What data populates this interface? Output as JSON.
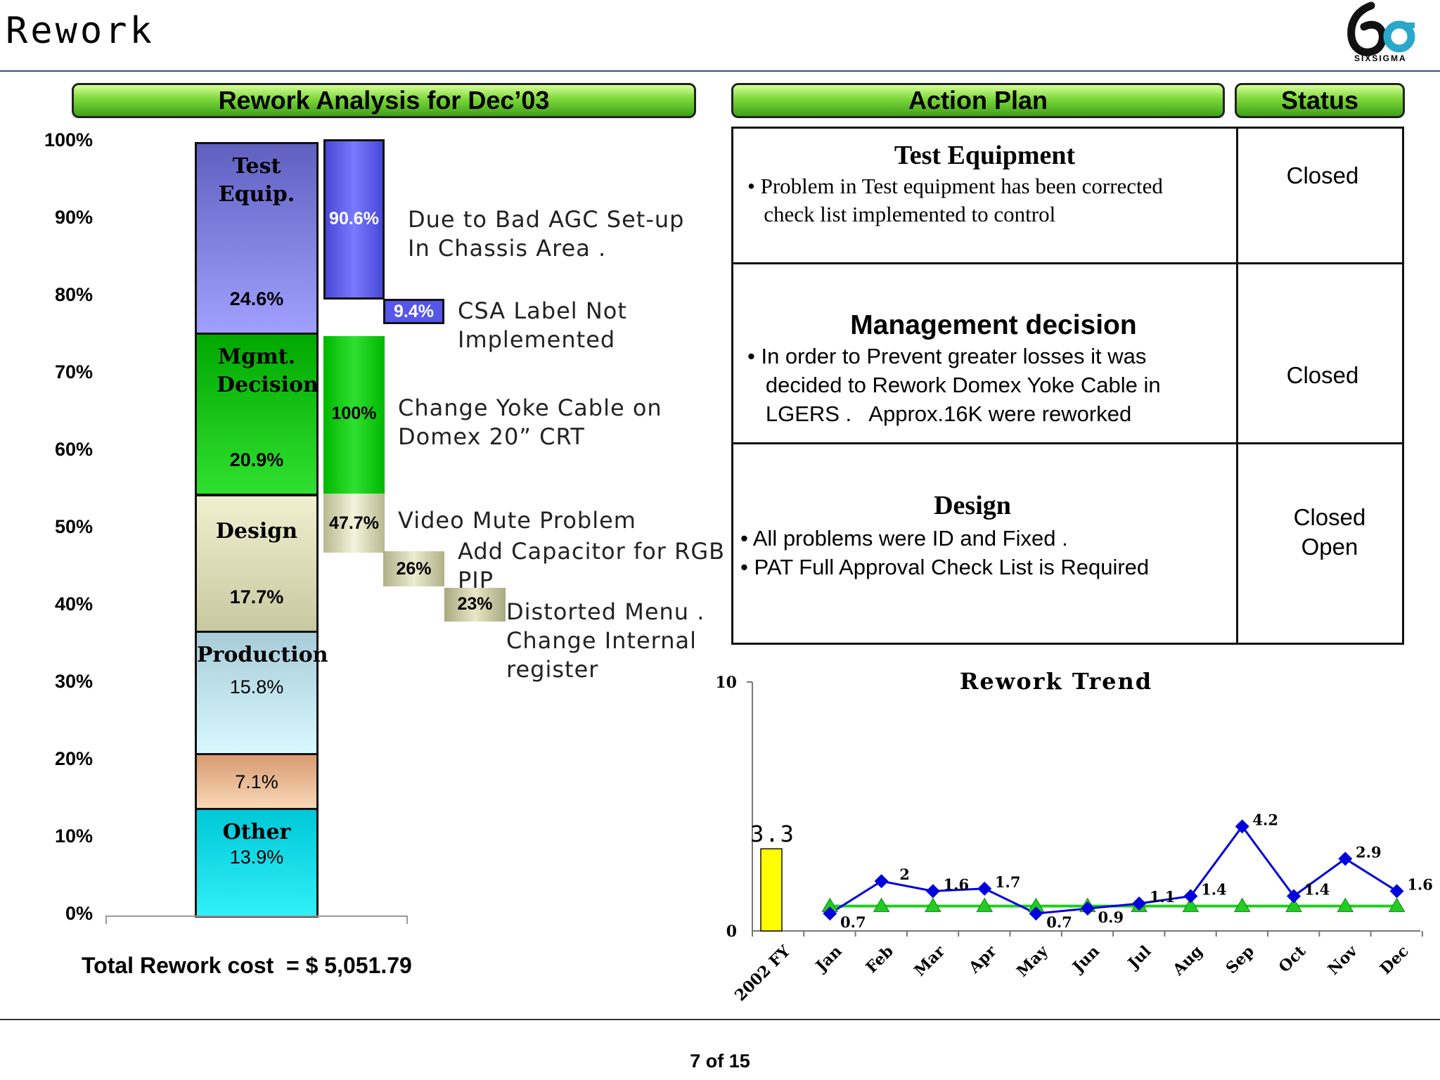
{
  "page": {
    "title": "Rework",
    "page_number": "7 of 15"
  },
  "logo": {
    "text": "SIXSIGMA"
  },
  "analysis": {
    "header": "Rework Analysis for Dec’03",
    "axis_ticks": [
      "0%",
      "10%",
      "20%",
      "30%",
      "40%",
      "50%",
      "60%",
      "70%",
      "80%",
      "90%",
      "100%"
    ],
    "segments": [
      {
        "name": "Other",
        "pct": "13.9%",
        "value": 13.9,
        "color_top": "#00c8d8",
        "color_bottom": "#30f0f8"
      },
      {
        "name": "",
        "pct": "7.1%",
        "value": 7.1,
        "color_top": "#d89a70",
        "color_bottom": "#f8d8b8"
      },
      {
        "name": "Production",
        "pct": "15.8%",
        "value": 15.8,
        "color_top": "#a8ccd8",
        "color_bottom": "#d8f8ff"
      },
      {
        "name": "Design",
        "pct": "17.7%",
        "value": 17.7,
        "color_top": "#f0f0d0",
        "color_bottom": "#c8c8a0"
      },
      {
        "name": "Mgmt. Decision",
        "pct": "20.9%",
        "value": 20.9,
        "color_top": "#00a800",
        "color_bottom": "#30e030"
      },
      {
        "name": "Test Equip.",
        "pct": "24.6%",
        "value": 24.6,
        "color_top": "#6060c0",
        "color_bottom": "#a0a0ff"
      }
    ],
    "breakdown": {
      "test_equip_1": "90.6%",
      "test_equip_2": "9.4%",
      "mgmt": "100%",
      "design_1": "47.7%",
      "design_2": "26%",
      "design_3": "23%"
    },
    "notes": {
      "agc": "Due to Bad AGC Set-up\nIn Chassis Area .",
      "csa": "CSA Label Not\nImplemented",
      "yoke": "Change Yoke Cable on\nDomex 20” CRT",
      "video": "Video Mute Problem",
      "cap": "Add Capacitor for RGB\nPIP",
      "menu": "Distorted Menu .\nChange Internal\nregister"
    },
    "total_cost": "Total Rework cost  = $ 5,051.79"
  },
  "action_plan": {
    "header": "Action Plan",
    "status_header": "Status",
    "rows": [
      {
        "title": "Test Equipment",
        "body": "• Problem in Test equipment has been corrected\n   check list implemented to control",
        "status": "Closed"
      },
      {
        "title": "Management decision",
        "body": "• In order to Prevent greater losses it was\n   decided to Rework Domex Yoke Cable in\n   LGERS .   Approx.16K were reworked",
        "status": "Closed"
      },
      {
        "title": "Design",
        "body": "• All problems were ID and Fixed .\n• PAT Full Approval Check List is Required",
        "status": "Closed\nOpen"
      }
    ]
  },
  "chart_data": [
    {
      "type": "bar",
      "title": "Rework Analysis for Dec’03",
      "stacked": true,
      "categories": [
        ""
      ],
      "series": [
        {
          "name": "Other",
          "values": [
            13.9
          ]
        },
        {
          "name": "",
          "values": [
            7.1
          ]
        },
        {
          "name": "Production",
          "values": [
            15.8
          ]
        },
        {
          "name": "Design",
          "values": [
            17.7
          ]
        },
        {
          "name": "Mgmt. Decision",
          "values": [
            20.9
          ]
        },
        {
          "name": "Test Equip.",
          "values": [
            24.6
          ]
        }
      ],
      "ylim": [
        0,
        100
      ],
      "yticks": [
        "0%",
        "10%",
        "20%",
        "30%",
        "40%",
        "50%",
        "60%",
        "70%",
        "80%",
        "90%",
        "100%"
      ]
    },
    {
      "type": "line",
      "title": "Rework Trend",
      "categories": [
        "2002 FY",
        "Jan",
        "Feb",
        "Mar",
        "Apr",
        "May",
        "Jun",
        "Jul",
        "Aug",
        "Sep",
        "Oct",
        "Nov",
        "Dec"
      ],
      "fy_bar": {
        "category": "2002 FY",
        "value": 3.3,
        "label": "3.3",
        "color": "#ffff00"
      },
      "series": [
        {
          "values": [
            null,
            0.7,
            2,
            1.6,
            1.7,
            0.7,
            0.9,
            1.1,
            1.4,
            4.2,
            1.4,
            2.9,
            1.6
          ],
          "labels": [
            "",
            "0.7",
            "2",
            "1.6",
            "1.7",
            "0.7",
            "0.9",
            "1.1",
            "1.4",
            "4.2",
            "1.4",
            "2.9",
            "1.6"
          ],
          "color": "#0000dd",
          "marker": "diamond"
        },
        {
          "values": [
            null,
            1,
            1,
            1,
            1,
            1,
            1,
            1,
            1,
            1,
            1,
            1,
            1
          ],
          "color": "#22cc22",
          "marker": "triangle"
        }
      ],
      "ylim": [
        0,
        10
      ],
      "yticks": [
        "0",
        "10"
      ]
    }
  ]
}
